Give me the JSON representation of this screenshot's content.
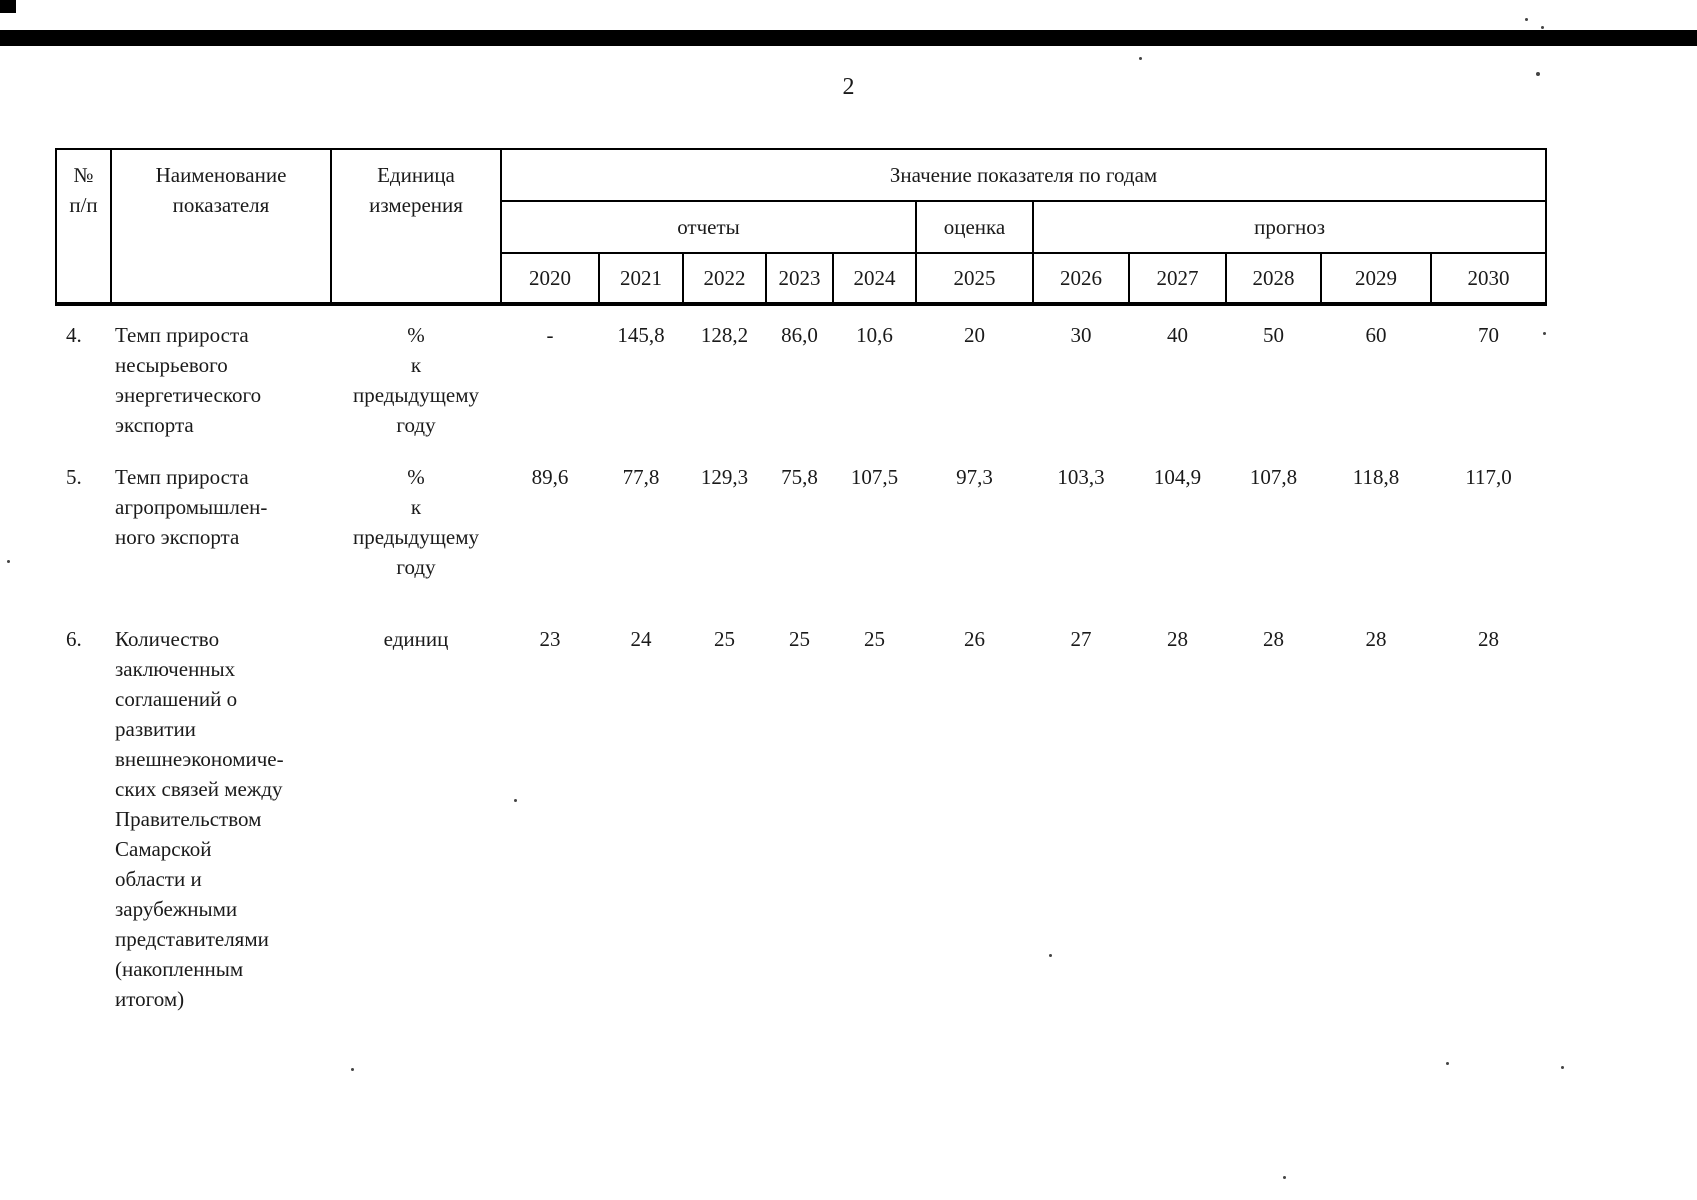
{
  "page": {
    "number": "2"
  },
  "table": {
    "headers": {
      "num": "№\nп/п",
      "name": "Наименование\nпоказателя",
      "unit": "Единица\nизмерения",
      "values_title": "Значение показателя по годам",
      "groups": [
        {
          "label": "отчеты",
          "years": [
            "2020",
            "2021",
            "2022",
            "2023",
            "2024"
          ]
        },
        {
          "label": "оценка",
          "years": [
            "2025"
          ]
        },
        {
          "label": "прогноз",
          "years": [
            "2026",
            "2027",
            "2028",
            "2029",
            "2030"
          ]
        }
      ]
    },
    "rows": [
      {
        "num": "4.",
        "name": "Темп прироста\nнесырьевого\nэнергетического\nэкспорта",
        "unit": "%\nк\nпредыдущему\nгоду",
        "values": [
          "-",
          "145,8",
          "128,2",
          "86,0",
          "10,6",
          "20",
          "30",
          "40",
          "50",
          "60",
          "70"
        ]
      },
      {
        "num": "5.",
        "name": "Темп прироста\nагропромышлен-\nного экспорта",
        "unit": "%\nк\nпредыдущему\nгоду",
        "values": [
          "89,6",
          "77,8",
          "129,3",
          "75,8",
          "107,5",
          "97,3",
          "103,3",
          "104,9",
          "107,8",
          "118,8",
          "117,0"
        ]
      },
      {
        "num": "6.",
        "name": "Количество\nзаключенных\nсоглашений о\nразвитии\nвнешнеэкономиче-\nских связей между\nПравительством\nСамарской\nобласти и\nзарубежными\nпредставителями\n(накопленным\nитогом)",
        "unit": "единиц",
        "values": [
          "23",
          "24",
          "25",
          "25",
          "25",
          "26",
          "27",
          "28",
          "28",
          "28",
          "28"
        ]
      }
    ]
  }
}
